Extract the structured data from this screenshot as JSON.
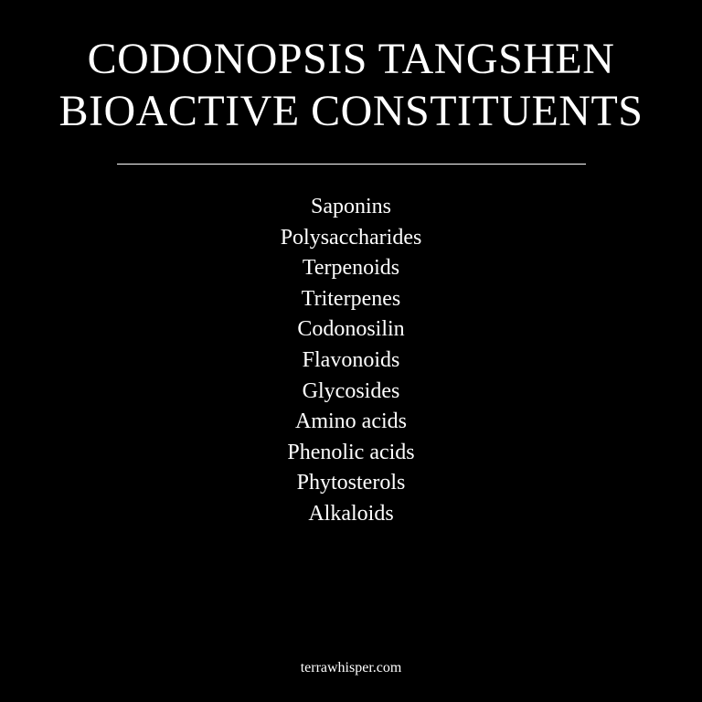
{
  "title": {
    "line1": "CODONOPSIS TANGSHEN",
    "line2": "BIOACTIVE CONSTITUENTS"
  },
  "constituents": [
    "Saponins",
    "Polysaccharides",
    "Terpenoids",
    "Triterpenes",
    "Codonosilin",
    "Flavonoids",
    "Glycosides",
    "Amino acids",
    "Phenolic acids",
    "Phytosterols",
    "Alkaloids"
  ],
  "footer": {
    "site": "terrawhisper.com"
  }
}
